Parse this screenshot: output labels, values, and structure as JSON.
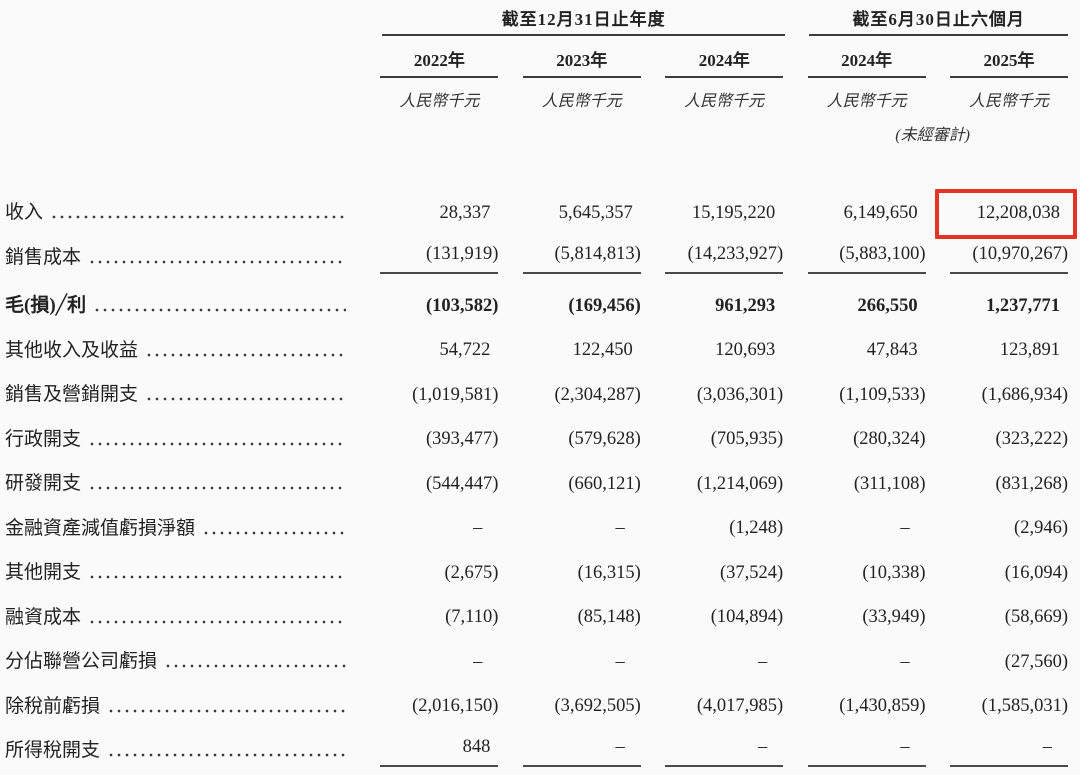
{
  "header": {
    "groups": [
      {
        "title": "截至12月31日止年度"
      },
      {
        "title": "截至6月30日止六個月"
      }
    ],
    "columns": [
      {
        "year": "2022年",
        "unit": "人民幣千元"
      },
      {
        "year": "2023年",
        "unit": "人民幣千元"
      },
      {
        "year": "2024年",
        "unit": "人民幣千元"
      },
      {
        "year": "2024年",
        "unit": "人民幣千元"
      },
      {
        "year": "2025年",
        "unit": "人民幣千元"
      }
    ],
    "unaudited_note": "(未經審計)"
  },
  "highlight": {
    "color": "#e43325",
    "row": 0,
    "col": 4
  },
  "rows": [
    {
      "label": "收入",
      "values": [
        "28,337",
        "5,645,357",
        "15,195,220",
        "6,149,650",
        "12,208,038"
      ]
    },
    {
      "label": "銷售成本",
      "values": [
        "(131,919)",
        "(5,814,813)",
        "(14,233,927)",
        "(5,883,100)",
        "(10,970,267)"
      ],
      "rule_below": true
    },
    {
      "label": "毛(損)╱利",
      "values": [
        "(103,582)",
        "(169,456)",
        "961,293",
        "266,550",
        "1,237,771"
      ],
      "bold": true,
      "extra_top": true
    },
    {
      "label": "其他收入及收益",
      "values": [
        "54,722",
        "122,450",
        "120,693",
        "47,843",
        "123,891"
      ]
    },
    {
      "label": "銷售及營銷開支",
      "values": [
        "(1,019,581)",
        "(2,304,287)",
        "(3,036,301)",
        "(1,109,533)",
        "(1,686,934)"
      ]
    },
    {
      "label": "行政開支",
      "values": [
        "(393,477)",
        "(579,628)",
        "(705,935)",
        "(280,324)",
        "(323,222)"
      ]
    },
    {
      "label": "研發開支",
      "values": [
        "(544,447)",
        "(660,121)",
        "(1,214,069)",
        "(311,108)",
        "(831,268)"
      ]
    },
    {
      "label": "金融資產減值虧損淨額",
      "values": [
        "–",
        "–",
        "(1,248)",
        "–",
        "(2,946)"
      ]
    },
    {
      "label": "其他開支",
      "values": [
        "(2,675)",
        "(16,315)",
        "(37,524)",
        "(10,338)",
        "(16,094)"
      ]
    },
    {
      "label": "融資成本",
      "values": [
        "(7,110)",
        "(85,148)",
        "(104,894)",
        "(33,949)",
        "(58,669)"
      ]
    },
    {
      "label": "分佔聯營公司虧損",
      "values": [
        "–",
        "–",
        "–",
        "–",
        "(27,560)"
      ]
    },
    {
      "label": "除稅前虧損",
      "values": [
        "(2,016,150)",
        "(3,692,505)",
        "(4,017,985)",
        "(1,430,859)",
        "(1,585,031)"
      ]
    },
    {
      "label": "所得稅開支",
      "values": [
        "848",
        "–",
        "–",
        "–",
        "–"
      ],
      "rule_below": true
    }
  ]
}
